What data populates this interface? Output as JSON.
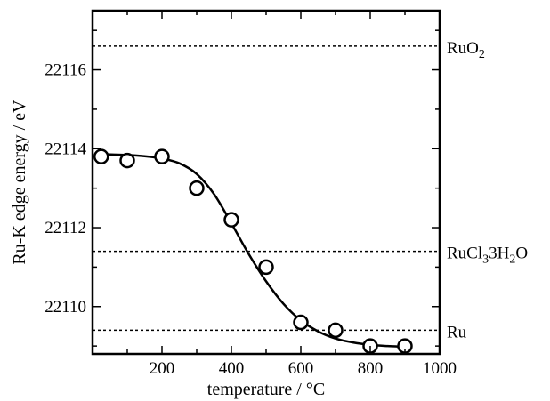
{
  "chart_data": {
    "type": "scatter",
    "title": "",
    "xlabel": "temperature / °C",
    "ylabel": "Ru-K edge energy / eV",
    "xlim": [
      0,
      1000
    ],
    "ylim": [
      22108.8,
      22117.5
    ],
    "grid": false,
    "x_ticks": [
      200,
      400,
      600,
      800,
      1000
    ],
    "x_tick_labels": [
      "200",
      "400",
      "600",
      "800",
      "1000"
    ],
    "y_ticks": [
      22110,
      22112,
      22114,
      22116
    ],
    "y_tick_labels": [
      "22110",
      "22112",
      "22114",
      "22116"
    ],
    "series": [
      {
        "type": "scatter",
        "marker": "open-circle",
        "x": [
          25,
          100,
          200,
          300,
          400,
          500,
          600,
          700,
          800,
          900
        ],
        "y": [
          22113.8,
          22113.7,
          22113.8,
          22113.0,
          22112.2,
          22111.0,
          22109.6,
          22109.4,
          22109.0,
          22109.0
        ]
      },
      {
        "type": "line",
        "style": "solid",
        "x": [
          25,
          100,
          150,
          200,
          250,
          300,
          350,
          400,
          450,
          500,
          550,
          600,
          650,
          700,
          750,
          800,
          850,
          900,
          920
        ],
        "y": [
          22113.86,
          22113.84,
          22113.81,
          22113.75,
          22113.63,
          22113.36,
          22112.85,
          22112.11,
          22111.33,
          22110.64,
          22110.07,
          22109.65,
          22109.37,
          22109.19,
          22109.09,
          22109.03,
          22109.0,
          22108.98,
          22108.97
        ]
      }
    ],
    "reference_lines": [
      {
        "label_main": "RuO",
        "label_sub1": "2",
        "label_mid": "",
        "label_sub2": "",
        "label_tail": "",
        "y": 22116.6
      },
      {
        "label_main": "RuCl",
        "label_sub1": "3",
        "label_mid": "3H",
        "label_sub2": "2",
        "label_tail": "O",
        "y": 22111.4
      },
      {
        "label_main": "Ru",
        "label_sub1": "",
        "label_mid": "",
        "label_sub2": "",
        "label_tail": "",
        "y": 22109.4
      }
    ]
  }
}
